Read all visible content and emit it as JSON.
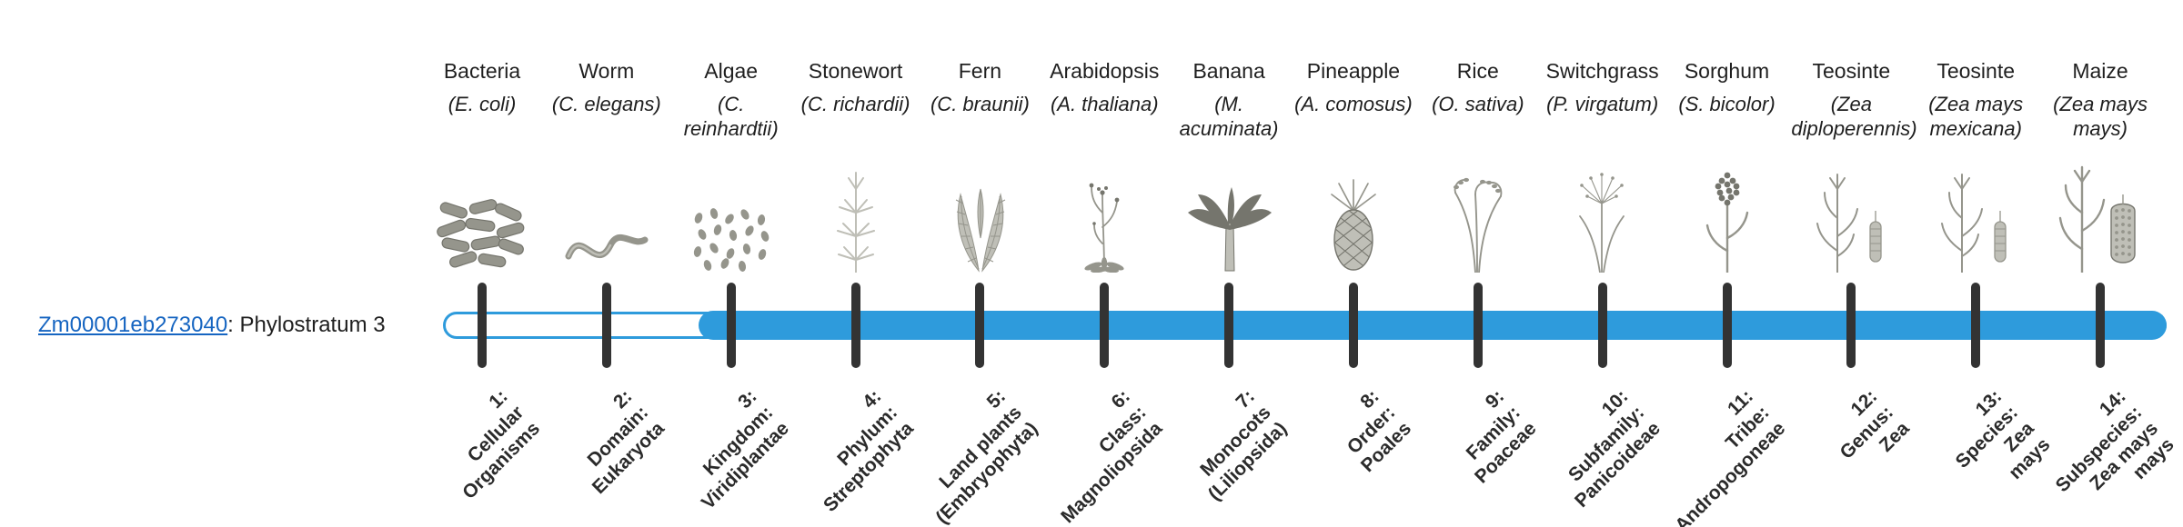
{
  "gene": {
    "id": "Zm00001eb273040",
    "suffix": ": Phylostratum 3",
    "phylostratum": 3
  },
  "colors": {
    "bar": "#2E9BDC",
    "tick": "#333333",
    "link": "#1665C1",
    "text": "#1F1F1F",
    "illustration": "#95958C",
    "illustration_dark": "#75756D",
    "illustration_light": "#BFBFB7"
  },
  "strata": [
    {
      "index": 1,
      "organism": "Bacteria",
      "scientific": "(E. coli)",
      "icon": "bacteria-icon",
      "label_lines": [
        "1:",
        "Cellular",
        "Organisms"
      ]
    },
    {
      "index": 2,
      "organism": "Worm",
      "scientific": "(C. elegans)",
      "icon": "worm-icon",
      "label_lines": [
        "2:",
        "Domain:",
        "Eukaryota"
      ]
    },
    {
      "index": 3,
      "organism": "Algae",
      "scientific": "(C. reinhardtii)",
      "icon": "algae-icon",
      "label_lines": [
        "3:",
        "Kingdom:",
        "Viridiplantae"
      ]
    },
    {
      "index": 4,
      "organism": "Stonewort",
      "scientific": "(C. richardii)",
      "icon": "stonewort-icon",
      "label_lines": [
        "4:",
        "Phylum:",
        "Streptophyta"
      ]
    },
    {
      "index": 5,
      "organism": "Fern",
      "scientific": "(C. braunii)",
      "icon": "fern-icon",
      "label_lines": [
        "5:",
        "Land plants",
        "(Embryophyta)"
      ]
    },
    {
      "index": 6,
      "organism": "Arabidopsis",
      "scientific": "(A. thaliana)",
      "icon": "arabidopsis-icon",
      "label_lines": [
        "6:",
        "Class:",
        "Magnoliopsida"
      ]
    },
    {
      "index": 7,
      "organism": "Banana",
      "scientific": "(M. acuminata)",
      "icon": "banana-plant-icon",
      "label_lines": [
        "7:",
        "Monocots",
        "(Liliopsida)"
      ]
    },
    {
      "index": 8,
      "organism": "Pineapple",
      "scientific": "(A. comosus)",
      "icon": "pineapple-icon",
      "label_lines": [
        "8:",
        "Order:",
        "Poales"
      ]
    },
    {
      "index": 9,
      "organism": "Rice",
      "scientific": "(O. sativa)",
      "icon": "rice-icon",
      "label_lines": [
        "9:",
        "Family:",
        "Poaceae"
      ]
    },
    {
      "index": 10,
      "organism": "Switchgrass",
      "scientific": "(P. virgatum)",
      "icon": "switchgrass-icon",
      "label_lines": [
        "10:",
        "Subfamily:",
        "Panicoideae"
      ]
    },
    {
      "index": 11,
      "organism": "Sorghum",
      "scientific": "(S. bicolor)",
      "icon": "sorghum-icon",
      "label_lines": [
        "11:",
        "Tribe:",
        "Andropogoneae"
      ]
    },
    {
      "index": 12,
      "organism": "Teosinte",
      "scientific": "(Zea diploperennis)",
      "icon": "teosinte-icon",
      "label_lines": [
        "12:",
        "Genus:",
        "Zea"
      ]
    },
    {
      "index": 13,
      "organism": "Teosinte",
      "scientific": "(Zea mays mexicana)",
      "icon": "teosinte-icon",
      "label_lines": [
        "13:",
        "Species:",
        "Zea",
        "mays"
      ]
    },
    {
      "index": 14,
      "organism": "Maize",
      "scientific": "(Zea mays mays)",
      "icon": "maize-icon",
      "label_lines": [
        "14:",
        "Subspecies:",
        "Zea mays",
        "mays"
      ]
    }
  ]
}
